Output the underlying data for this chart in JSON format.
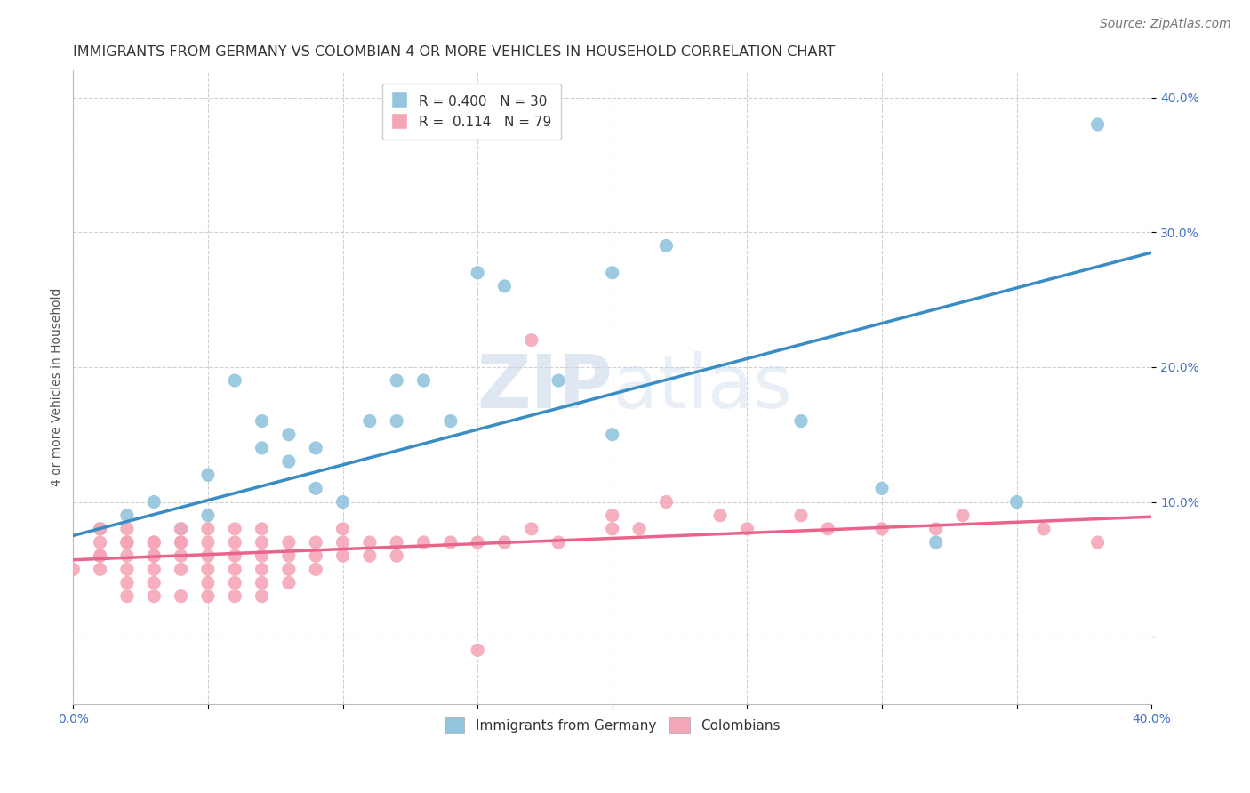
{
  "title": "IMMIGRANTS FROM GERMANY VS COLOMBIAN 4 OR MORE VEHICLES IN HOUSEHOLD CORRELATION CHART",
  "source": "Source: ZipAtlas.com",
  "ylabel": "4 or more Vehicles in Household",
  "xlim": [
    0.0,
    0.4
  ],
  "ylim": [
    -0.05,
    0.42
  ],
  "legend1_R": "0.400",
  "legend1_N": "30",
  "legend2_R": "0.114",
  "legend2_N": "79",
  "blue_color": "#92c5de",
  "pink_color": "#f4a6b8",
  "line_blue": "#3a8dc4",
  "line_pink": "#e8648a",
  "text_blue": "#4472c4",
  "background": "#ffffff",
  "blue_scatter_x": [
    0.01,
    0.02,
    0.03,
    0.04,
    0.05,
    0.05,
    0.06,
    0.07,
    0.07,
    0.08,
    0.08,
    0.09,
    0.09,
    0.1,
    0.11,
    0.12,
    0.13,
    0.14,
    0.15,
    0.16,
    0.18,
    0.2,
    0.22,
    0.27,
    0.3,
    0.32,
    0.35,
    0.38,
    0.2,
    0.12
  ],
  "blue_scatter_y": [
    0.08,
    0.09,
    0.1,
    0.08,
    0.09,
    0.12,
    0.19,
    0.14,
    0.16,
    0.13,
    0.15,
    0.11,
    0.14,
    0.1,
    0.16,
    0.19,
    0.19,
    0.16,
    0.27,
    0.26,
    0.19,
    0.15,
    0.29,
    0.16,
    0.11,
    0.07,
    0.1,
    0.38,
    0.27,
    0.16
  ],
  "pink_scatter_x": [
    0.0,
    0.01,
    0.01,
    0.01,
    0.01,
    0.01,
    0.02,
    0.02,
    0.02,
    0.02,
    0.02,
    0.02,
    0.02,
    0.03,
    0.03,
    0.03,
    0.03,
    0.03,
    0.03,
    0.03,
    0.04,
    0.04,
    0.04,
    0.04,
    0.04,
    0.04,
    0.05,
    0.05,
    0.05,
    0.05,
    0.05,
    0.05,
    0.06,
    0.06,
    0.06,
    0.06,
    0.06,
    0.06,
    0.07,
    0.07,
    0.07,
    0.07,
    0.07,
    0.07,
    0.08,
    0.08,
    0.08,
    0.08,
    0.09,
    0.09,
    0.09,
    0.1,
    0.1,
    0.1,
    0.11,
    0.11,
    0.12,
    0.12,
    0.13,
    0.14,
    0.15,
    0.16,
    0.17,
    0.18,
    0.2,
    0.21,
    0.24,
    0.25,
    0.27,
    0.28,
    0.3,
    0.32,
    0.33,
    0.36,
    0.38,
    0.15,
    0.17,
    0.2,
    0.22
  ],
  "pink_scatter_y": [
    0.05,
    0.07,
    0.06,
    0.08,
    0.05,
    0.06,
    0.07,
    0.06,
    0.08,
    0.05,
    0.04,
    0.07,
    0.03,
    0.06,
    0.07,
    0.05,
    0.04,
    0.03,
    0.06,
    0.07,
    0.07,
    0.06,
    0.08,
    0.05,
    0.03,
    0.07,
    0.07,
    0.06,
    0.05,
    0.08,
    0.04,
    0.03,
    0.07,
    0.06,
    0.08,
    0.05,
    0.04,
    0.03,
    0.07,
    0.06,
    0.05,
    0.04,
    0.08,
    0.03,
    0.07,
    0.06,
    0.05,
    0.04,
    0.07,
    0.06,
    0.05,
    0.07,
    0.06,
    0.08,
    0.07,
    0.06,
    0.07,
    0.06,
    0.07,
    0.07,
    0.07,
    0.07,
    0.08,
    0.07,
    0.08,
    0.08,
    0.09,
    0.08,
    0.09,
    0.08,
    0.08,
    0.08,
    0.09,
    0.08,
    0.07,
    -0.01,
    0.22,
    0.09,
    0.1
  ],
  "blue_line_x": [
    0.0,
    0.4
  ],
  "blue_line_y": [
    0.075,
    0.285
  ],
  "pink_line_x": [
    0.0,
    0.4
  ],
  "pink_line_y": [
    0.057,
    0.089
  ],
  "title_fontsize": 11.5,
  "source_fontsize": 10,
  "label_fontsize": 10,
  "tick_fontsize": 10,
  "legend_fontsize": 11
}
